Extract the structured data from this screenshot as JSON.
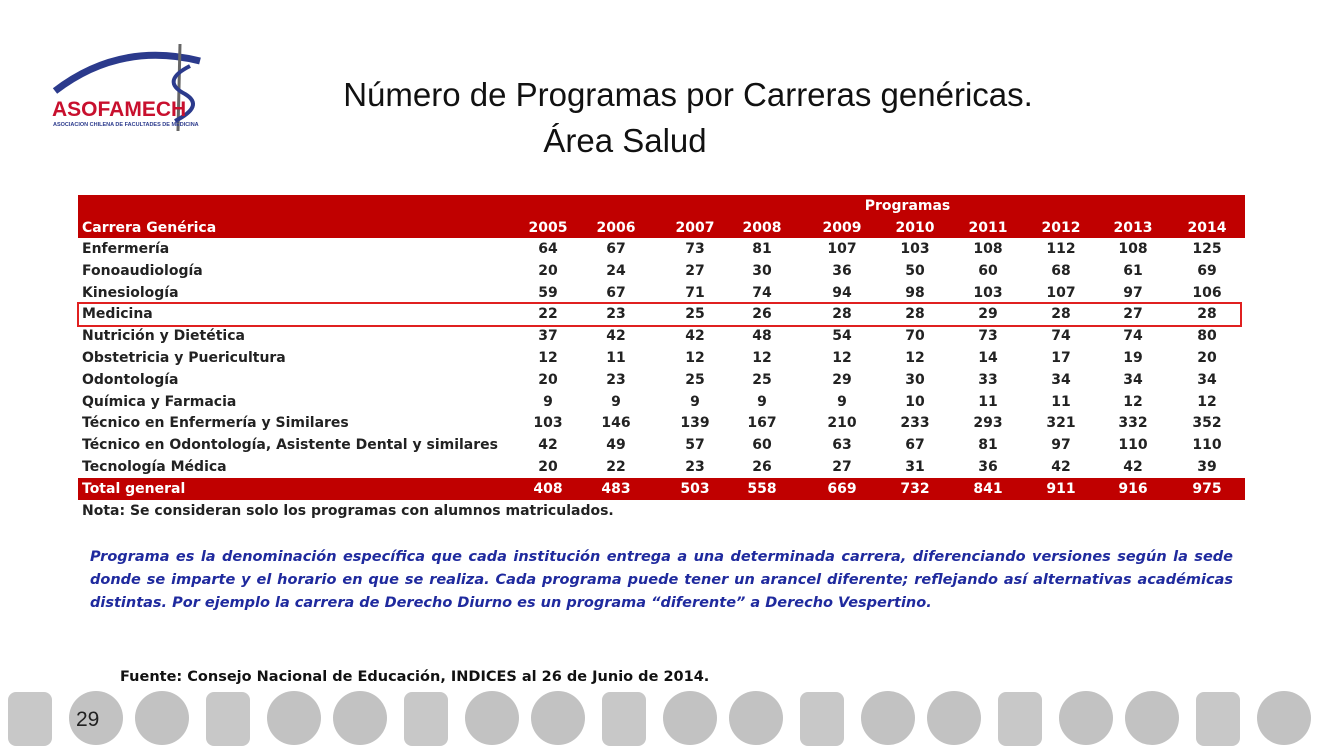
{
  "logo": {
    "name": "ASOFAMECH",
    "subtitle": "ASOCIACION CHILENA DE FACULTADES DE MEDICINA"
  },
  "header": {
    "title": "Número de Programas por Carreras genéricas.",
    "subtitle": "Área Salud"
  },
  "table": {
    "group_header": "Programas",
    "columns": [
      "Carrera Genérica",
      "2005",
      "2006",
      "2007",
      "2008",
      "2009",
      "2010",
      "2011",
      "2012",
      "2013",
      "2014"
    ],
    "rows": [
      [
        "Enfermería",
        64,
        67,
        73,
        81,
        107,
        103,
        108,
        112,
        108,
        125
      ],
      [
        "Fonoaudiología",
        20,
        24,
        27,
        30,
        36,
        50,
        60,
        68,
        61,
        69
      ],
      [
        "Kinesiología",
        59,
        67,
        71,
        74,
        94,
        98,
        103,
        107,
        97,
        106
      ],
      [
        "Medicina",
        22,
        23,
        25,
        26,
        28,
        28,
        29,
        28,
        27,
        28
      ],
      [
        "Nutrición y Dietética",
        37,
        42,
        42,
        48,
        54,
        70,
        73,
        74,
        74,
        80
      ],
      [
        "Obstetricia y Puericultura",
        12,
        11,
        12,
        12,
        12,
        12,
        14,
        17,
        19,
        20
      ],
      [
        "Odontología",
        20,
        23,
        25,
        25,
        29,
        30,
        33,
        34,
        34,
        34
      ],
      [
        "Química y Farmacia",
        9,
        9,
        9,
        9,
        9,
        10,
        11,
        11,
        12,
        12
      ],
      [
        "Técnico en Enfermería y Similares",
        103,
        146,
        139,
        167,
        210,
        233,
        293,
        321,
        332,
        352
      ],
      [
        "Técnico en Odontología, Asistente Dental y similares",
        42,
        49,
        57,
        60,
        63,
        67,
        81,
        97,
        110,
        110
      ],
      [
        "Tecnología Médica",
        20,
        22,
        23,
        26,
        27,
        31,
        36,
        42,
        42,
        39
      ]
    ],
    "total": [
      "Total general",
      408,
      483,
      503,
      558,
      669,
      732,
      841,
      911,
      916,
      975
    ],
    "note": "Nota: Se consideran solo los programas con alumnos matriculados."
  },
  "description": "Programa es la denominación específica que cada institución entrega a una determinada carrera, diferenciando versiones según la sede donde se imparte y el horario en que se realiza. Cada programa puede tener un arancel diferente; reflejando así alternativas académicas distintas. Por ejemplo la carrera de Derecho Diurno es un programa “diferente” a Derecho Vespertino.",
  "source": "Fuente: Consejo Nacional de Educación, INDICES al 26 de Junio de 2014.",
  "page_number": "29"
}
